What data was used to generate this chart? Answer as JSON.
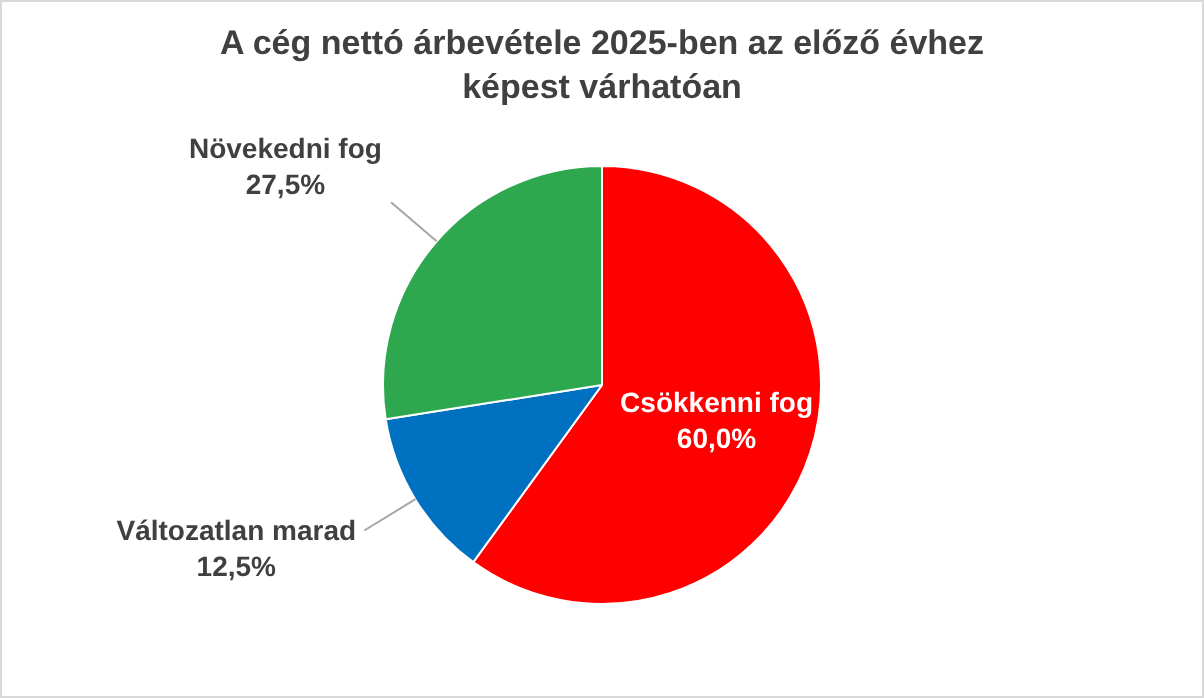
{
  "chart_data": {
    "type": "pie",
    "title": "A cég nettó árbevétele 2025-ben az előző évhez képest várhatóan",
    "categories": [
      "Csökkenni fog",
      "Változatlan marad",
      "Növekedni fog"
    ],
    "values": [
      60,
      12.5,
      27.5
    ],
    "value_labels": [
      "60,0%",
      "12,5%",
      "27,5%"
    ],
    "colors": [
      "#ff0000",
      "#0070c0",
      "#2ea84f"
    ],
    "legend": false
  }
}
